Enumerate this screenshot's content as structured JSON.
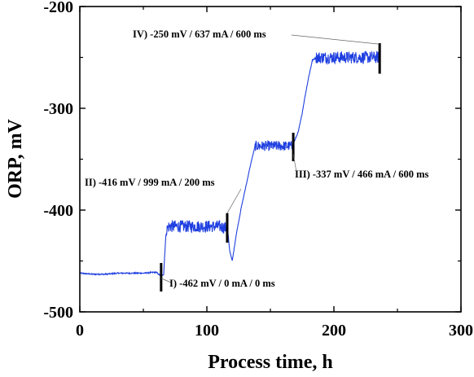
{
  "chart_data": {
    "type": "line",
    "title": "",
    "xlabel": "Process time, h",
    "ylabel": "ORP, mV",
    "xlim": [
      0,
      300
    ],
    "ylim": [
      -500,
      -200
    ],
    "xticks": [
      "0",
      "100",
      "200",
      "300"
    ],
    "yticks": [
      "-500",
      "-400",
      "-300",
      "-200"
    ],
    "grid": false,
    "line_color": "#1f3fe0",
    "series": [
      {
        "points": [
          [
            0,
            -462
          ],
          [
            10,
            -463
          ],
          [
            20,
            -463
          ],
          [
            30,
            -462
          ],
          [
            40,
            -462
          ],
          [
            50,
            -462
          ],
          [
            60,
            -461
          ],
          [
            62,
            -463
          ],
          [
            64,
            -465
          ],
          [
            66,
            -463
          ],
          [
            67,
            -440
          ],
          [
            68,
            -420
          ],
          [
            70,
            -416
          ],
          [
            80,
            -416
          ],
          [
            90,
            -416
          ],
          [
            100,
            -416
          ],
          [
            110,
            -416
          ],
          [
            116,
            -418
          ],
          [
            118,
            -440
          ],
          [
            120,
            -450
          ],
          [
            123,
            -425
          ],
          [
            127,
            -398
          ],
          [
            131,
            -375
          ],
          [
            135,
            -352
          ],
          [
            138,
            -337
          ],
          [
            150,
            -337
          ],
          [
            160,
            -337
          ],
          [
            167,
            -337
          ],
          [
            169,
            -332
          ],
          [
            172,
            -323
          ],
          [
            175,
            -305
          ],
          [
            177,
            -290
          ],
          [
            180,
            -270
          ],
          [
            183,
            -253
          ],
          [
            186,
            -250
          ],
          [
            200,
            -250
          ],
          [
            215,
            -250
          ],
          [
            225,
            -250
          ],
          [
            236,
            -250
          ]
        ],
        "noise": [
          {
            "x_range": [
              68,
              117
            ],
            "amplitude": 6
          },
          {
            "x_range": [
              138,
              168
            ],
            "amplitude": 5
          },
          {
            "x_range": [
              186,
              236
            ],
            "amplitude": 6
          }
        ]
      }
    ],
    "markers": [
      {
        "x": 64,
        "y_range": [
          -480,
          -452
        ],
        "color": "#000000"
      },
      {
        "x": 116,
        "y_range": [
          -432,
          -403
        ],
        "color": "#000000"
      },
      {
        "x": 168,
        "y_range": [
          -352,
          -324
        ],
        "color": "#000000"
      },
      {
        "x": 236,
        "y_range": [
          -266,
          -236
        ],
        "color": "#000000"
      }
    ],
    "annotations": [
      {
        "label": "I) -462 mV / 0 mA / 0 ms",
        "x": 64,
        "y": -467
      },
      {
        "label": "II) -416 mV / 999 mA / 200 ms",
        "x": 116,
        "y": -403
      },
      {
        "label": "III) -337 mV / 466 mA / 600 ms",
        "x": 168,
        "y": -345
      },
      {
        "label": "IV) -250 mV / 637 mA / 600 ms",
        "x": 236,
        "y": -237
      }
    ]
  }
}
